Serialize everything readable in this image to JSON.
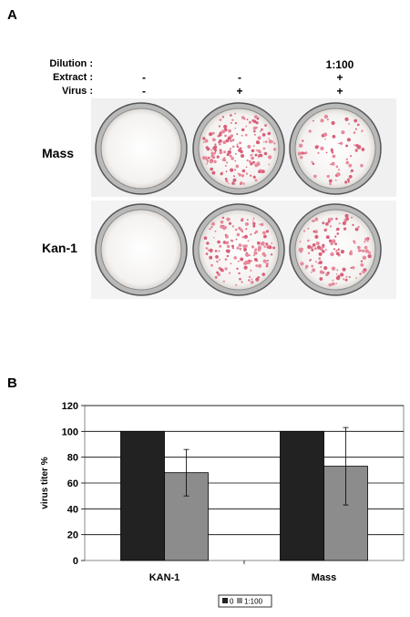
{
  "panel_a": {
    "letter": "A",
    "conditions": [
      {
        "label": "Dilution :",
        "values": [
          "",
          "",
          "1:100"
        ]
      },
      {
        "label": "Extract :",
        "values": [
          "-",
          "-",
          "+"
        ]
      },
      {
        "label": "Virus :",
        "values": [
          "-",
          "+",
          "+"
        ]
      }
    ],
    "rows": [
      {
        "label": "Mass",
        "plaques": [
          0,
          180,
          70
        ]
      },
      {
        "label": "Kan-1",
        "plaques": [
          0,
          150,
          130
        ]
      }
    ]
  },
  "panel_b": {
    "letter": "B",
    "legend": [
      "0",
      "1:100"
    ]
  },
  "chart_data": {
    "type": "bar",
    "categories": [
      "KAN-1",
      "Mass"
    ],
    "series": [
      {
        "name": "0",
        "values": [
          100,
          100
        ],
        "errors": [
          0,
          0
        ],
        "color": "#222222"
      },
      {
        "name": "1:100",
        "values": [
          68,
          73
        ],
        "errors": [
          18,
          30
        ],
        "color": "#8c8c8c"
      }
    ],
    "ylabel": "virus titer %",
    "ylim": [
      0,
      120
    ],
    "yticks": [
      0,
      20,
      40,
      60,
      80,
      100,
      120
    ],
    "grid": true,
    "legend_position": "bottom"
  }
}
